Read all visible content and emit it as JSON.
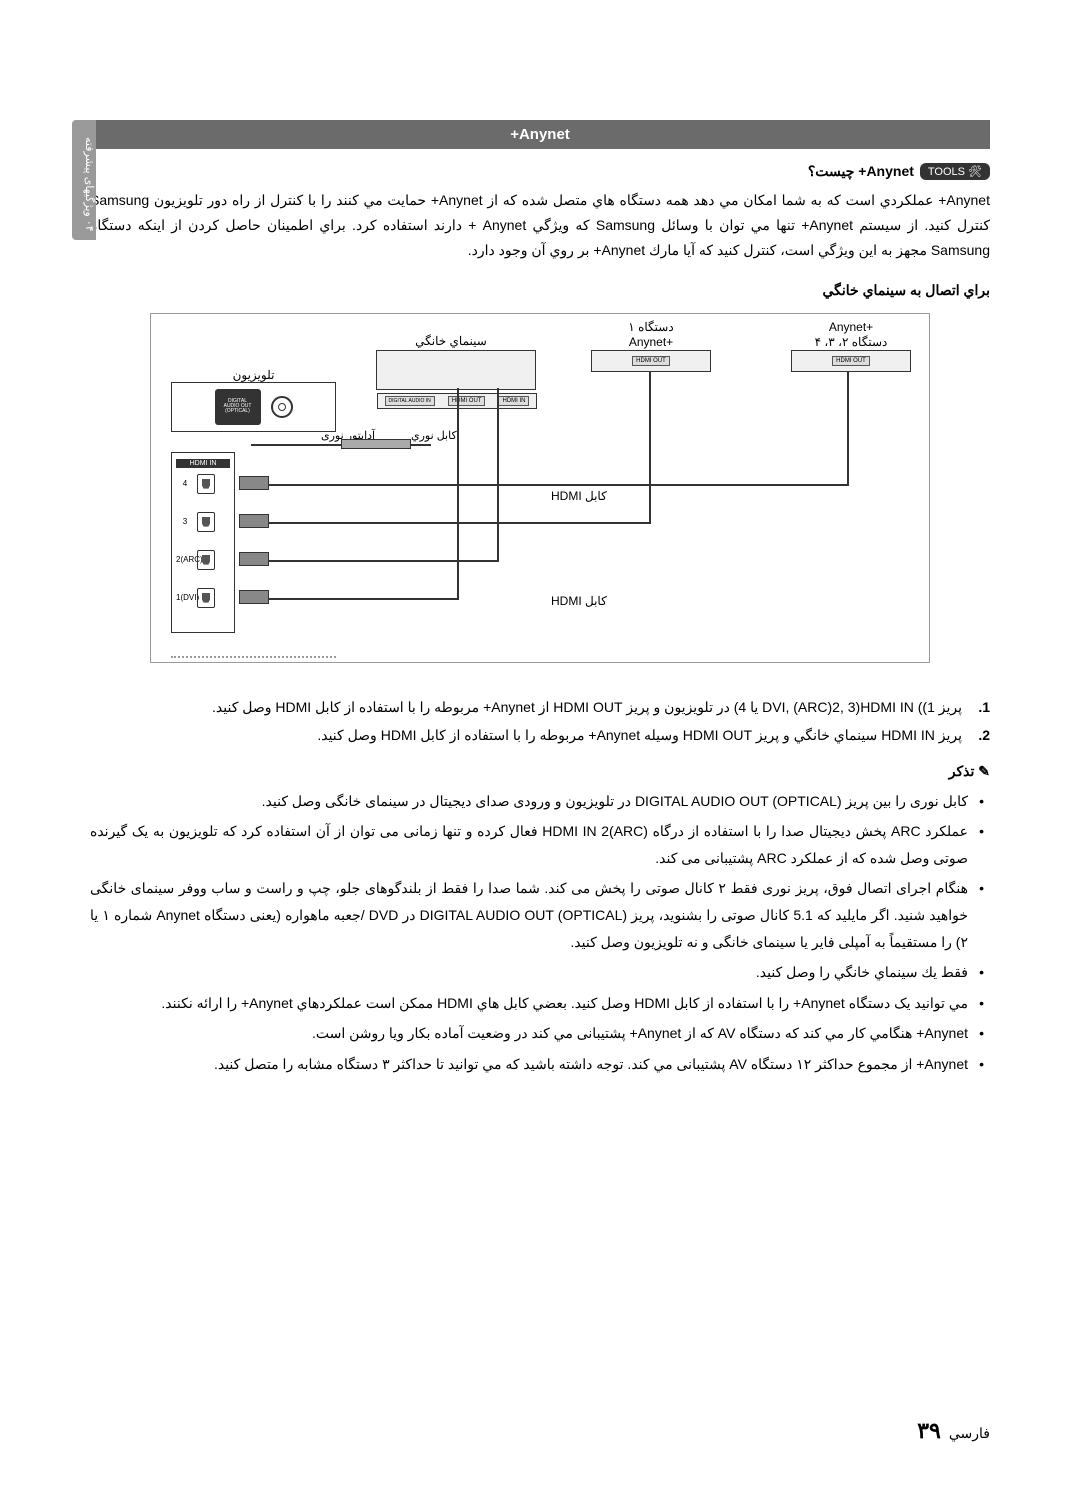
{
  "side_tab": "۰۴ ویژگیهای پیشرفته",
  "header": "Anynet+",
  "tools_badge": "TOOLS 🛠",
  "subtitle": "Anynet+ چیست؟",
  "intro": "Anynet+ عملكردي است كه به شما امكان مي دهد همه دستگاه هاي متصل شده كه از Anynet+ حمايت مي كنند را با كنترل از راه دور تلويزيون Samsung كنترل كنيد. از سيستم Anynet+ تنها مي توان با وسائل Samsung كه ويژگي Anynet + دارند استفاده كرد. براي اطمينان حاصل كردن از اينكه دستگاه Samsung مجهز به اين ويژگي است، كنترل كنيد كه آيا مارك Anynet+ بر روي آن وجود دارد.",
  "diagram_heading": "براي اتصال به سينماي خانگي",
  "diagram": {
    "anynet_dev_234": "Anynet+\nدستگاه ۲، ۳، ۴",
    "anynet_dev_1": "دستگاه ۱\nAnynet+",
    "home_theatre": "سينماي خانگي",
    "tv": "تلويزيون",
    "hdmi_out": "HDMI OUT",
    "hdmi_in": "HDMI IN",
    "digital_audio": "DIGITAL\nAUDIO OUT\n(OPTICAL)",
    "hdmi_in_label": "HDMI IN",
    "optical_cable": "كابل نوري",
    "optical_adapter": "آداپتور نوری",
    "hdmi_cable": "كابل HDMI",
    "slots": [
      "4",
      "3",
      "2(ARC)",
      "1(DVI)"
    ]
  },
  "steps": [
    "پریز HDMI IN ((1(DVI, (ARC)2, 3 يا 4) در تلويزيون و پریز HDMI OUT از Anynet+ مربوطه را با استفاده از كابل HDMI وصل كنيد.",
    "پریز HDMI IN سينماي خانگي و پریز HDMI OUT وسيله Anynet+ مربوطه را با استفاده از كابل HDMI وصل كنيد."
  ],
  "note_label": "تذكر",
  "bullets": [
    "كابل نوری را بين پريز (DIGITAL AUDIO OUT (OPTICAL در تلويزيون و ورودی صدای ديجيتال در سينمای خانگی وصل كنيد.",
    "عملكرد ARC پخش ديجيتال صدا را با استفاده از درگاه (HDMI IN 2(ARC فعال كرده و تنها زمانی می توان از آن استفاده كرد كه تلويزيون به يک گيرنده صوتی وصل شده كه از عملكرد ARC پشتيبانی می كند.",
    "هنگام اجرای اتصال فوق، پريز نوری فقط ۲ كانال صوتی را پخش می كند. شما صدا را فقط از بلندگوهای جلو، چپ و راست و ساب ووفر سينمای خانگی خواهيد شنيد. اگر مايليد كه 5.1 كانال صوتی را بشنويد، پريز (DIGITAL AUDIO OUT (OPTICAL در DVD /جعبه ماهواره (يعنی دستگاه Anynet شماره ۱ يا ۲) را مستقيماً به آمپلی فاير يا سينمای خانگی و نه تلويزيون وصل كنيد.",
    "فقط يك سينماي خانگي را وصل كنيد.",
    "مي توانيد يک دستگاه Anynet+ را با استفاده از كابل HDMI وصل كنيد. بعضي كابل هاي HDMI ممكن است عملكردهاي Anynet+ را ارائه نكنند.",
    "Anynet+ هنگامي كار مي كند كه دستگاه AV كه از Anynet+ پشتيبانی مي كند در وضعيت آماده بكار ويا روشن است.",
    "Anynet+ از مجموع حداكثر ۱۲ دستگاه AV پشتيبانی مي كند. توجه داشته باشيد كه مي توانيد تا حداكثر ۳ دستگاه مشابه را متصل كنيد."
  ],
  "page": {
    "lang": "فارسي",
    "num": "۳۹"
  },
  "colors": {
    "header_bg": "#6b6b6b",
    "side_tab_bg": "#9a9a9a",
    "text": "#000000",
    "badge_bg": "#333333"
  }
}
